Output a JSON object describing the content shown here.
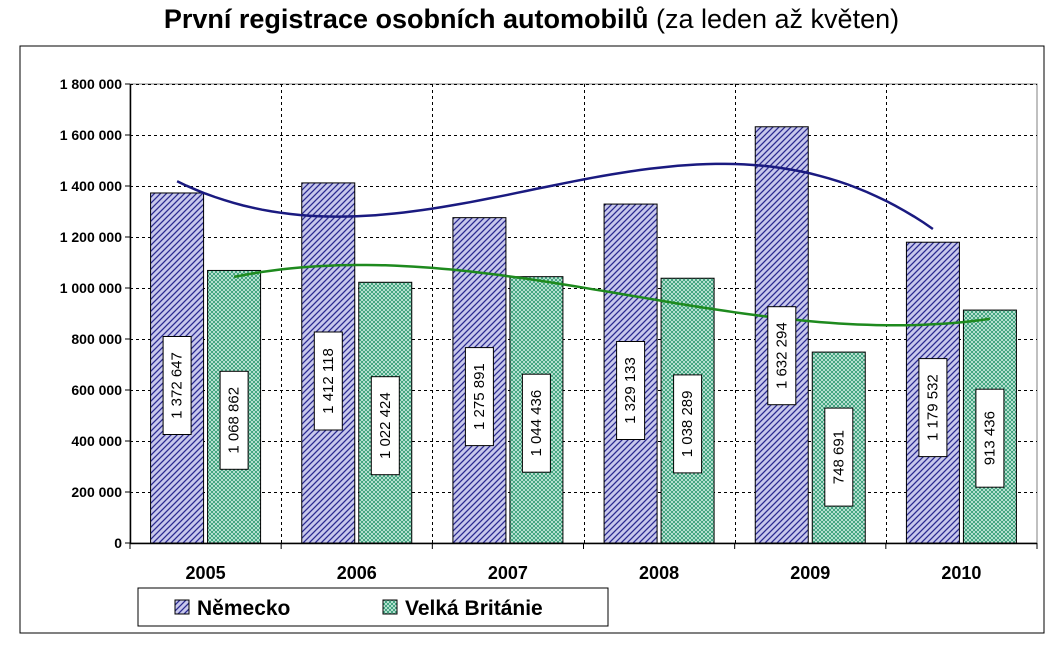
{
  "title": {
    "main": "První registrace osobních automobilů",
    "suffix": " (za leden až květen)"
  },
  "chart_data": {
    "type": "bar",
    "categories": [
      "2005",
      "2006",
      "2007",
      "2008",
      "2009",
      "2010"
    ],
    "series": [
      {
        "name": "Německo",
        "values": [
          1372647,
          1412118,
          1275891,
          1329133,
          1632294,
          1179532
        ],
        "labels": [
          "1 372 647",
          "1 412 118",
          "1 275 891",
          "1 329 133",
          "1 632 294",
          "1 179 532"
        ],
        "color": "#3a3aa0",
        "trend_color": "#1a1a80"
      },
      {
        "name": "Velká Británie",
        "values": [
          1068862,
          1022424,
          1044436,
          1038289,
          748691,
          913436
        ],
        "labels": [
          "1 068 862",
          "1 022 424",
          "1 044 436",
          "1 038 289",
          "748 691",
          "913 436"
        ],
        "color": "#3aa07a",
        "trend_color": "#1e8a1e"
      }
    ],
    "ylim": [
      0,
      1800000
    ],
    "yticks": [
      0,
      200000,
      400000,
      600000,
      800000,
      1000000,
      1200000,
      1400000,
      1600000,
      1800000
    ],
    "ytick_labels": [
      "0",
      "200 000",
      "400 000",
      "600 000",
      "800 000",
      "1 000 000",
      "1 200 000",
      "1 400 000",
      "1 600 000",
      "1 800 000"
    ],
    "grid": true,
    "legend": "bottom-left",
    "trendlines": "polynomial"
  }
}
